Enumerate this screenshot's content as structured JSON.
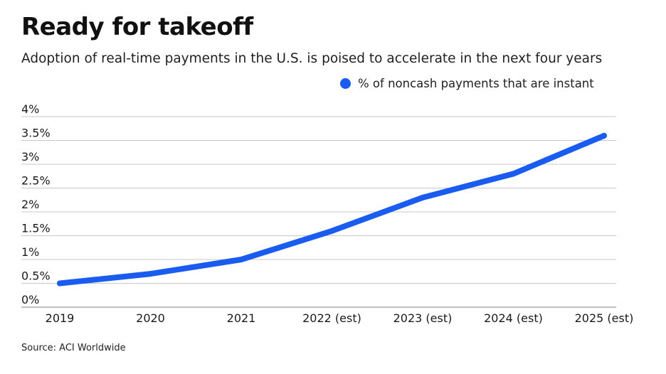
{
  "chart_data": {
    "type": "line",
    "title": "Ready for takeoff",
    "subtitle": "Adoption of real-time payments in the U.S. is poised to accelerate in the next four years",
    "categories": [
      "2019",
      "2020",
      "2021",
      "2022 (est)",
      "2023 (est)",
      "2024 (est)",
      "2025 (est)"
    ],
    "series": [
      {
        "name": "% of noncash payments that are instant",
        "values": [
          0.5,
          0.7,
          1.0,
          1.6,
          2.3,
          2.8,
          3.6
        ],
        "color": "#1a5bf0"
      }
    ],
    "y_ticks": [
      {
        "value": 0,
        "label": "0%"
      },
      {
        "value": 0.5,
        "label": "0.5%"
      },
      {
        "value": 1,
        "label": "1%"
      },
      {
        "value": 1.5,
        "label": "1.5%"
      },
      {
        "value": 2,
        "label": "2%"
      },
      {
        "value": 2.5,
        "label": "2.5%"
      },
      {
        "value": 3,
        "label": "3%"
      },
      {
        "value": 3.5,
        "label": "3.5%"
      },
      {
        "value": 4,
        "label": "4%"
      }
    ],
    "ylim": [
      0,
      4
    ],
    "xlabel": "",
    "ylabel": "",
    "grid": true,
    "legend_position": "top-right",
    "source": "Source: ACI Worldwide"
  }
}
